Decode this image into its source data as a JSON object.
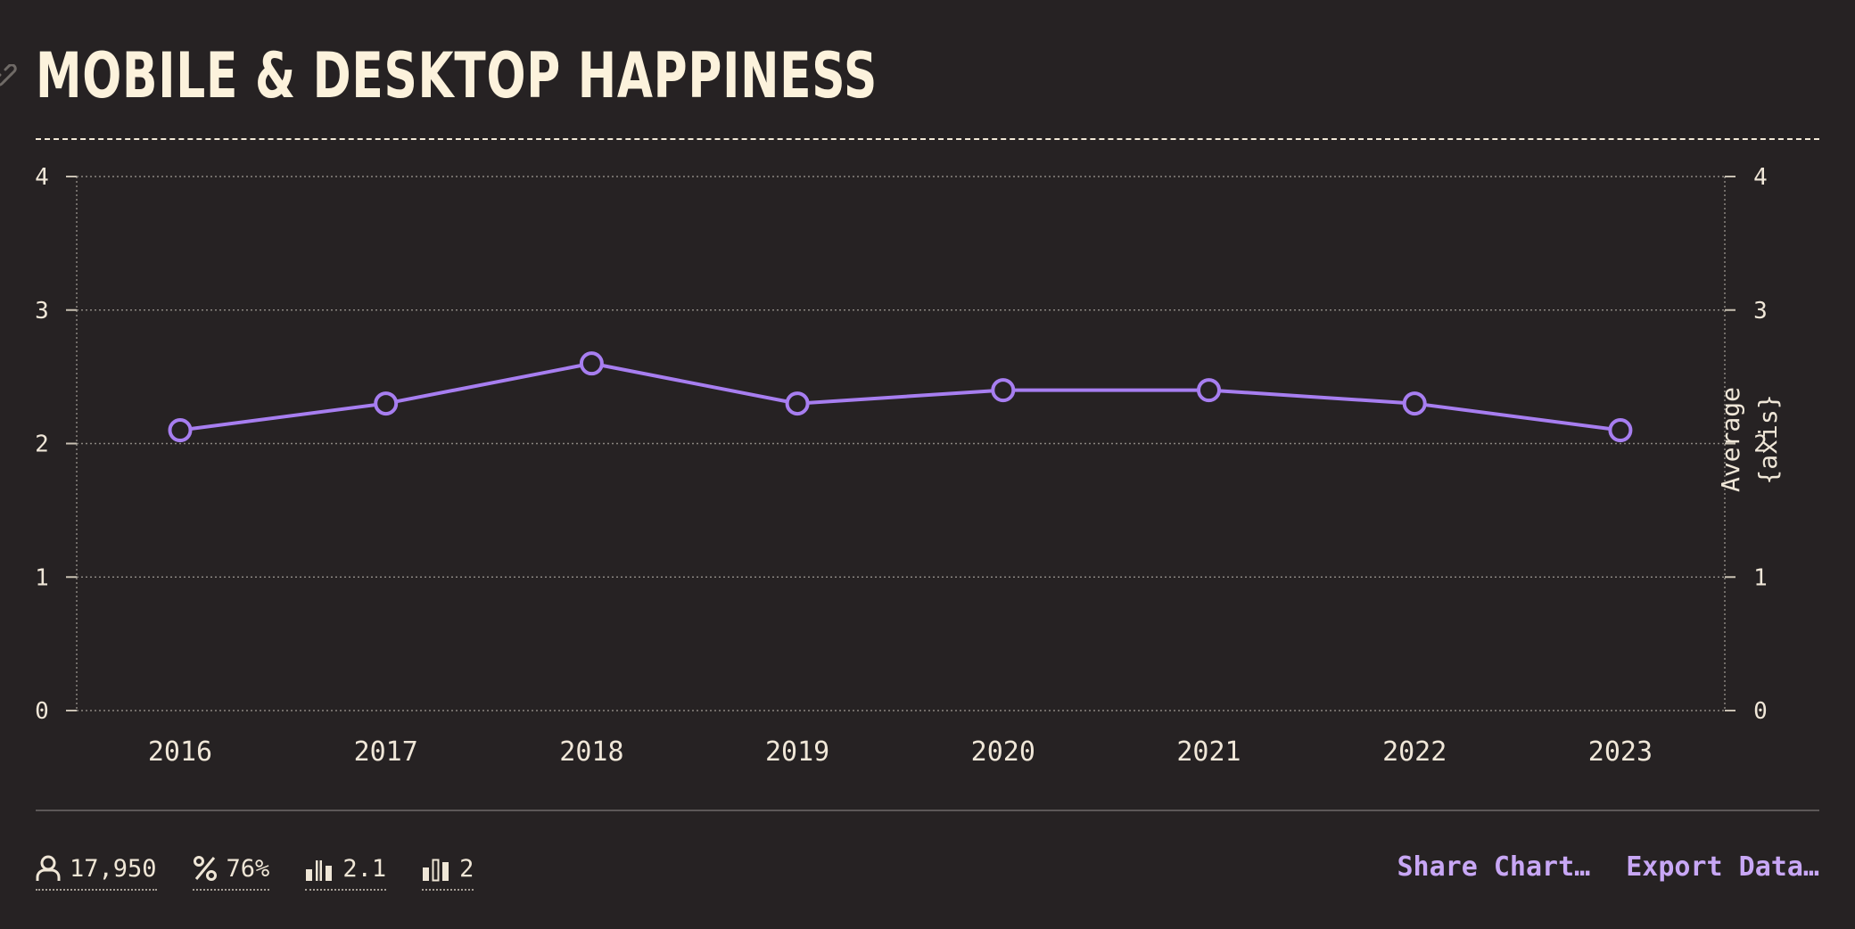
{
  "title": "MOBILE & DESKTOP HAPPINESS",
  "colors": {
    "background": "#262223",
    "line": "#a77ef0",
    "text": "#f6ecd9",
    "accent": "#c8a7f5"
  },
  "chart_data": {
    "type": "line",
    "categories": [
      "2016",
      "2017",
      "2018",
      "2019",
      "2020",
      "2021",
      "2022",
      "2023"
    ],
    "series": [
      {
        "values": [
          2.1,
          2.3,
          2.6,
          2.3,
          2.4,
          2.4,
          2.3,
          2.1
        ]
      }
    ],
    "ylim": [
      0,
      4
    ],
    "yticks": [
      "0",
      "1",
      "2",
      "3",
      "4"
    ],
    "y2label": "Average {axis}",
    "grid": true
  },
  "stats": [
    {
      "icon": "user-icon",
      "value": "17,950"
    },
    {
      "icon": "percent-icon",
      "value": "76%"
    },
    {
      "icon": "mean-bars-icon",
      "value": "2.1"
    },
    {
      "icon": "median-bars-icon",
      "value": "2"
    }
  ],
  "actions": {
    "share": "Share Chart…",
    "export": "Export Data…"
  }
}
